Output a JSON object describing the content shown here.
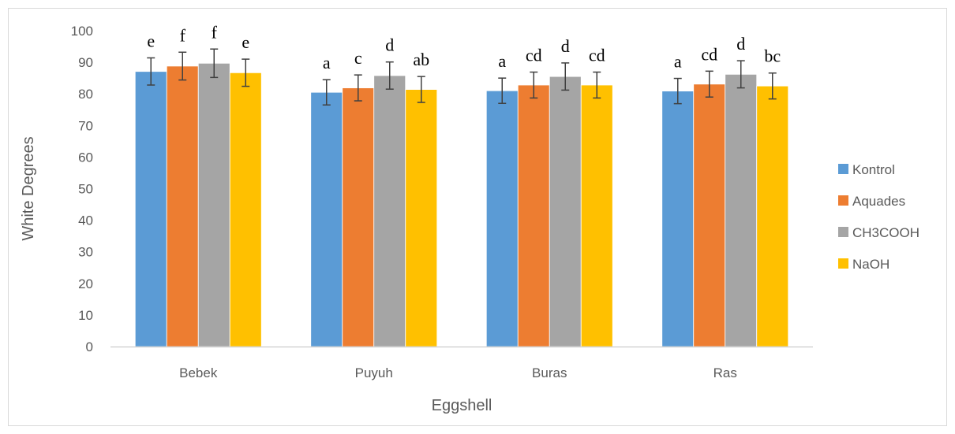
{
  "chart_data": {
    "type": "bar",
    "title": "",
    "xlabel": "Eggshell",
    "ylabel": "White Degrees",
    "ylim": [
      0,
      100
    ],
    "yticks": [
      0,
      10,
      20,
      30,
      40,
      50,
      60,
      70,
      80,
      90,
      100
    ],
    "categories": [
      "Bebek",
      "Puyuh",
      "Buras",
      "Ras"
    ],
    "grid": false,
    "legend_position": "right",
    "series": [
      {
        "name": "Kontrol",
        "color": "#5B9BD5",
        "values": [
          87.1,
          80.5,
          81.0,
          80.9
        ],
        "errors": [
          4.3,
          4.0,
          4.0,
          4.0
        ],
        "labels": [
          "e",
          "a",
          "a",
          "a"
        ]
      },
      {
        "name": "Aquades",
        "color": "#ED7D31",
        "values": [
          88.8,
          81.9,
          82.8,
          83.1
        ],
        "errors": [
          4.4,
          4.1,
          4.1,
          4.1
        ],
        "labels": [
          "f",
          "c",
          "cd",
          "cd"
        ]
      },
      {
        "name": "CH3COOH",
        "color": "#A5A5A5",
        "values": [
          89.7,
          85.8,
          85.5,
          86.2
        ],
        "errors": [
          4.5,
          4.3,
          4.3,
          4.3
        ],
        "labels": [
          "f",
          "d",
          "d",
          "d"
        ]
      },
      {
        "name": "NaOH",
        "color": "#FFC000",
        "values": [
          86.7,
          81.4,
          82.8,
          82.5
        ],
        "errors": [
          4.3,
          4.1,
          4.1,
          4.1
        ],
        "labels": [
          "e",
          "ab",
          "cd",
          "bc"
        ]
      }
    ]
  }
}
